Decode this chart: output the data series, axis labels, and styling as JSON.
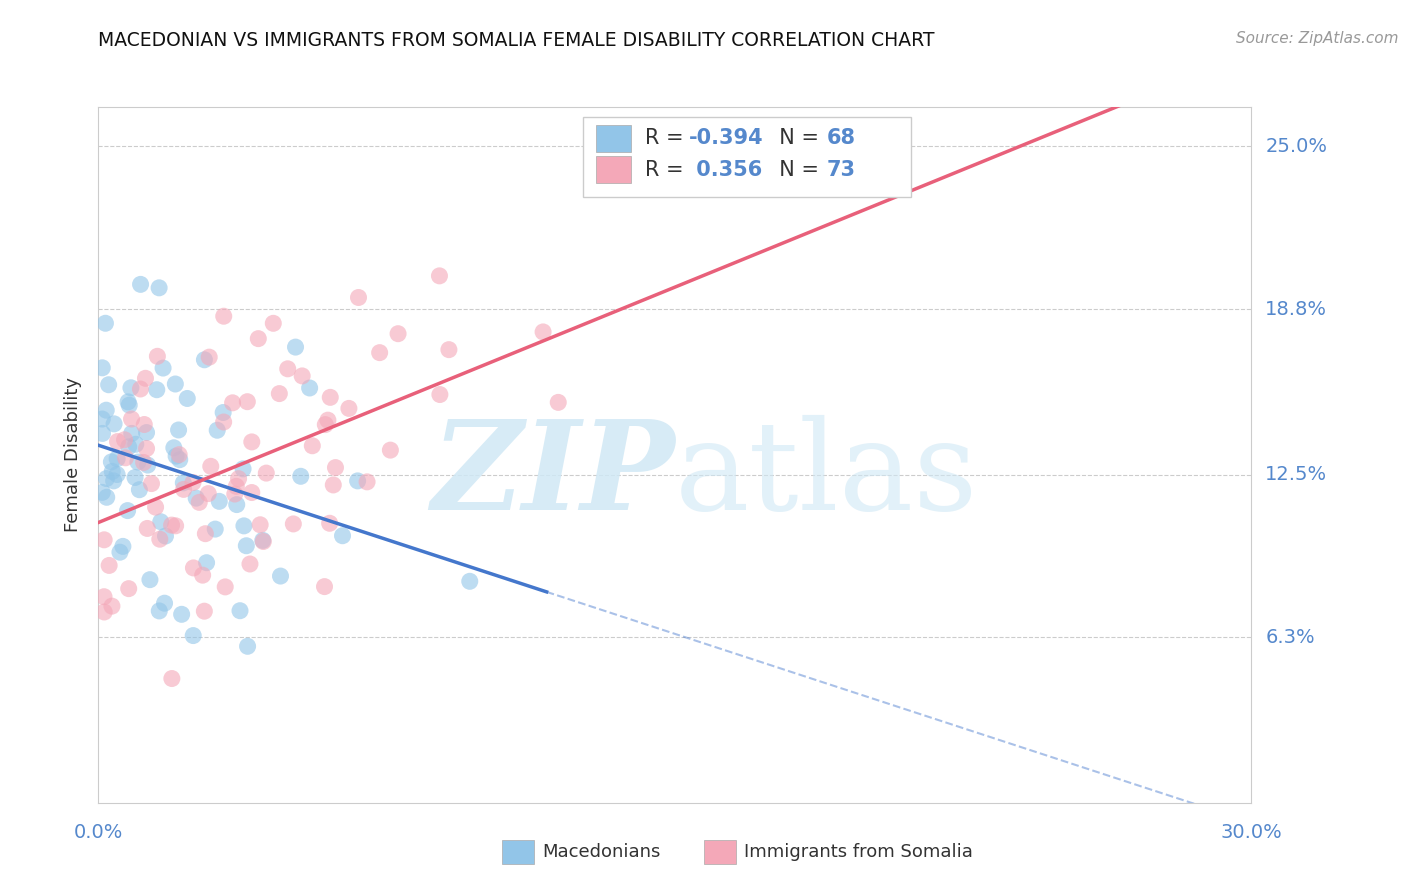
{
  "title": "MACEDONIAN VS IMMIGRANTS FROM SOMALIA FEMALE DISABILITY CORRELATION CHART",
  "source": "Source: ZipAtlas.com",
  "ylabel": "Female Disability",
  "ytick_labels": [
    "6.3%",
    "12.5%",
    "18.8%",
    "25.0%"
  ],
  "ytick_values": [
    0.063,
    0.125,
    0.188,
    0.25
  ],
  "xlim": [
    0.0,
    0.3
  ],
  "ylim": [
    0.0,
    0.265
  ],
  "blue_color": "#92C5E8",
  "pink_color": "#F4A8B8",
  "blue_line_color": "#4477CC",
  "pink_line_color": "#E8607A",
  "watermark_color": "#D0E8F5",
  "background_color": "#FFFFFF",
  "grid_color": "#CCCCCC",
  "legend_box_color": "#7FB3E0",
  "legend_pink_box_color": "#F4A8B8",
  "axis_label_color": "#5588CC",
  "text_color": "#333333",
  "source_color": "#999999"
}
